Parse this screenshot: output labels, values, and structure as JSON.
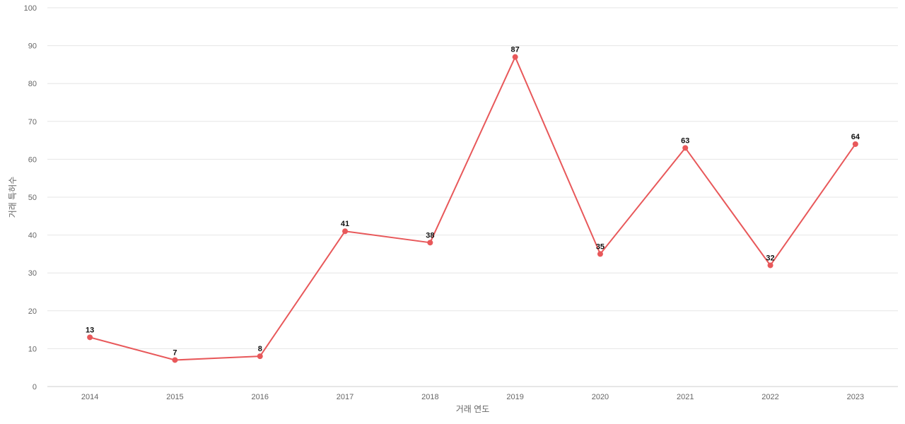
{
  "chart_data": {
    "type": "line",
    "title": "",
    "xlabel": "거래 연도",
    "ylabel": "거래 특허수",
    "categories": [
      "2014",
      "2015",
      "2016",
      "2017",
      "2018",
      "2019",
      "2020",
      "2021",
      "2022",
      "2023"
    ],
    "series": [
      {
        "values": [
          13,
          7,
          8,
          41,
          38,
          87,
          35,
          63,
          32,
          64
        ],
        "color": "#e8585a"
      }
    ],
    "ylim": [
      0,
      100
    ],
    "yticks": [
      0,
      10,
      20,
      30,
      40,
      50,
      60,
      70,
      80,
      90,
      100
    ],
    "grid": true,
    "data_labels": true,
    "legend": "none"
  }
}
